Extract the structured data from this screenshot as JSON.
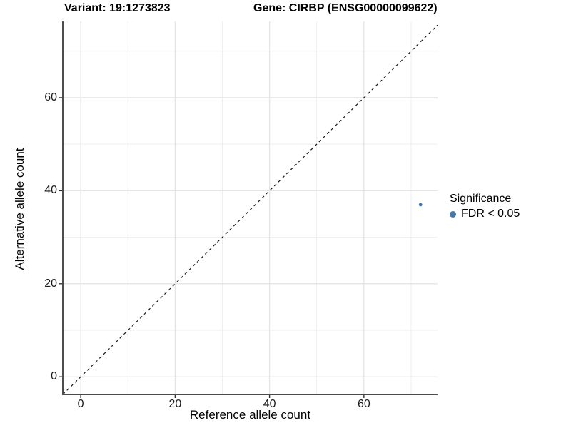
{
  "titles": {
    "variant": "Variant: 19:1273823",
    "gene": "Gene: CIRBP (ENSG00000099622)"
  },
  "axes": {
    "x_label": "Reference allele count",
    "y_label": "Alternative allele count"
  },
  "legend": {
    "title": "Significance",
    "items": [
      {
        "label": "FDR < 0.05",
        "color": "#4477aa",
        "shape": "circle"
      }
    ]
  },
  "colors": {
    "point": "#4477aa",
    "axis_line": "#4d4d4d",
    "tick_mark": "#333333",
    "grid_major": "#e4e4e4",
    "grid_minor": "#efefef",
    "reference_line": "#1a1a1a",
    "background": "#ffffff"
  },
  "chart_data": {
    "type": "scatter",
    "title_left": "Variant: 19:1273823",
    "title_right": "Gene: CIRBP (ENSG00000099622)",
    "xlabel": "Reference allele count",
    "ylabel": "Alternative allele count",
    "series": [
      {
        "name": "FDR < 0.05",
        "color": "#4477aa",
        "points": [
          {
            "x": 72,
            "y": 37
          }
        ]
      }
    ],
    "x_ticks": [
      0,
      20,
      40,
      60
    ],
    "y_ticks": [
      0,
      20,
      40,
      60
    ],
    "x_minor_ticks": [
      10,
      30,
      50,
      70
    ],
    "y_minor_ticks": [
      10,
      30,
      50,
      70
    ],
    "xlim": [
      -3.8,
      75.6
    ],
    "ylim": [
      -3.8,
      76.4
    ],
    "reference_line": {
      "slope": 1,
      "intercept": 0,
      "style": "dashed"
    },
    "grid": true,
    "legend_position": "right",
    "legend_title": "Significance"
  }
}
